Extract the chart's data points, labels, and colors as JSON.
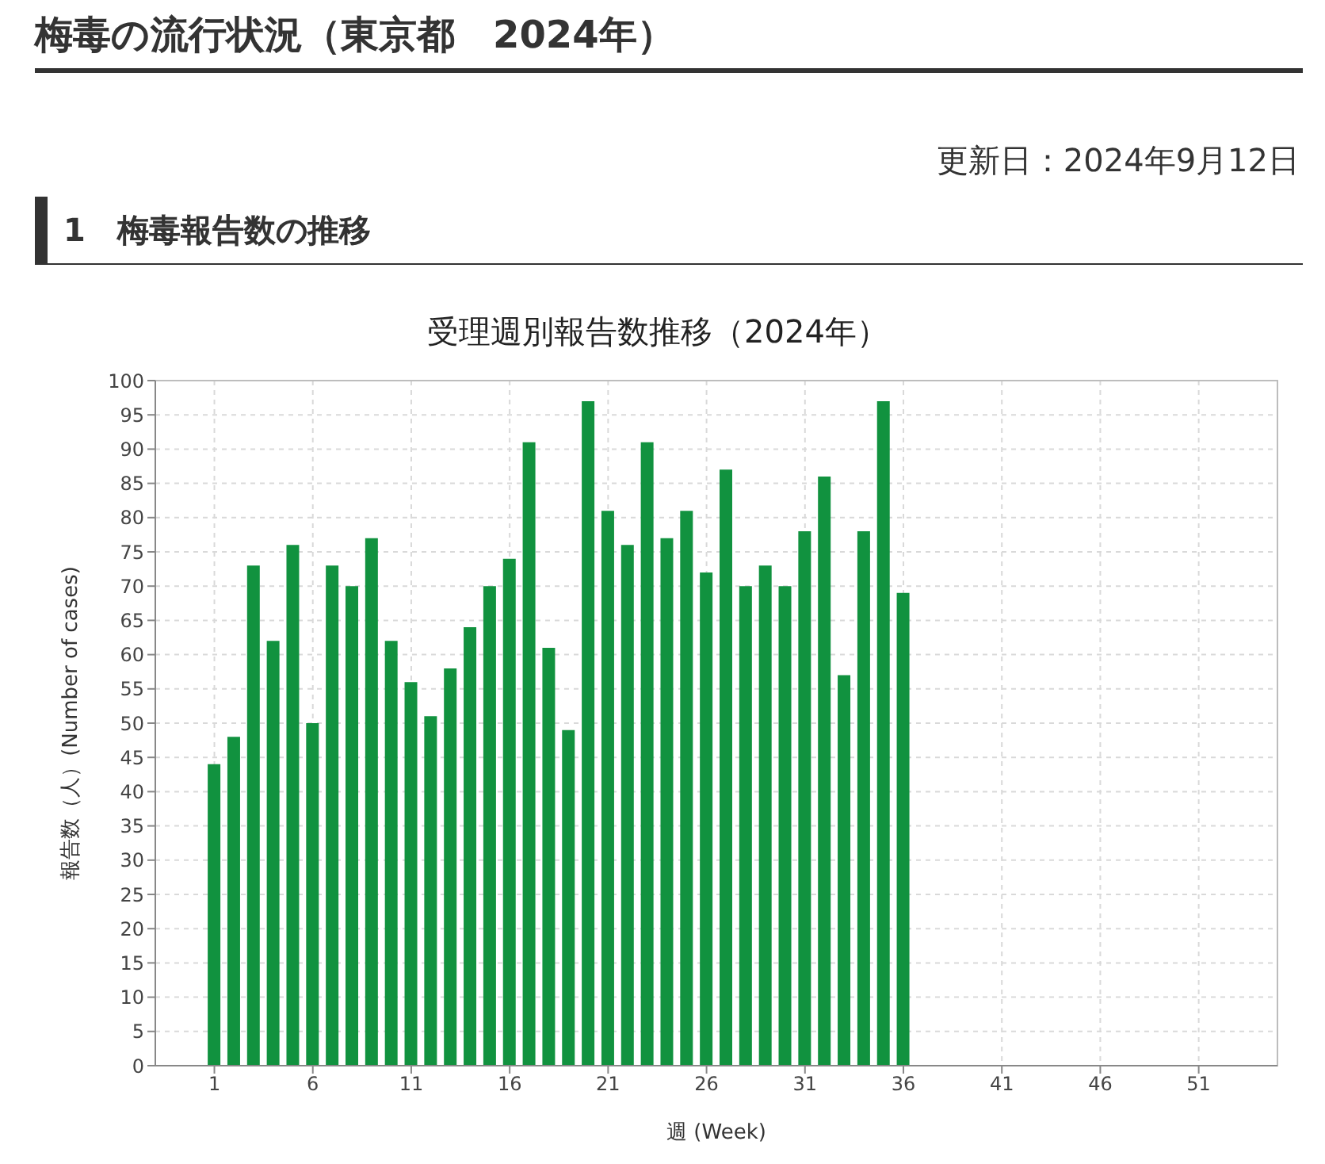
{
  "chart_data": {
    "type": "bar",
    "title": "受理週別報告数推移（2024年）",
    "xlabel": "週 (Week)",
    "ylabel": "報告数（人）(Number of cases)",
    "annotations": [
      "梅毒の流行状況（東京都　2024年）",
      "更新日：2024年9月12日",
      "1　梅毒報告数の推移"
    ],
    "x": [
      1,
      2,
      3,
      4,
      5,
      6,
      7,
      8,
      9,
      10,
      11,
      12,
      13,
      14,
      15,
      16,
      17,
      18,
      19,
      20,
      21,
      22,
      23,
      24,
      25,
      26,
      27,
      28,
      29,
      30,
      31,
      32,
      33,
      34,
      35,
      36
    ],
    "values": [
      44,
      48,
      73,
      62,
      76,
      50,
      73,
      70,
      77,
      62,
      56,
      51,
      58,
      64,
      70,
      74,
      91,
      61,
      49,
      97,
      81,
      76,
      91,
      77,
      81,
      72,
      87,
      70,
      73,
      70,
      78,
      86,
      57,
      78,
      97,
      69
    ],
    "color": "#11923f",
    "xlim": [
      -2,
      55
    ],
    "xticks": [
      1,
      6,
      11,
      16,
      21,
      26,
      31,
      36,
      41,
      46,
      51
    ],
    "ylim": [
      0,
      100
    ],
    "yticks": [
      0,
      5,
      10,
      15,
      20,
      25,
      30,
      35,
      40,
      45,
      50,
      55,
      60,
      65,
      70,
      75,
      80,
      85,
      90,
      95,
      100
    ],
    "grid": true
  }
}
